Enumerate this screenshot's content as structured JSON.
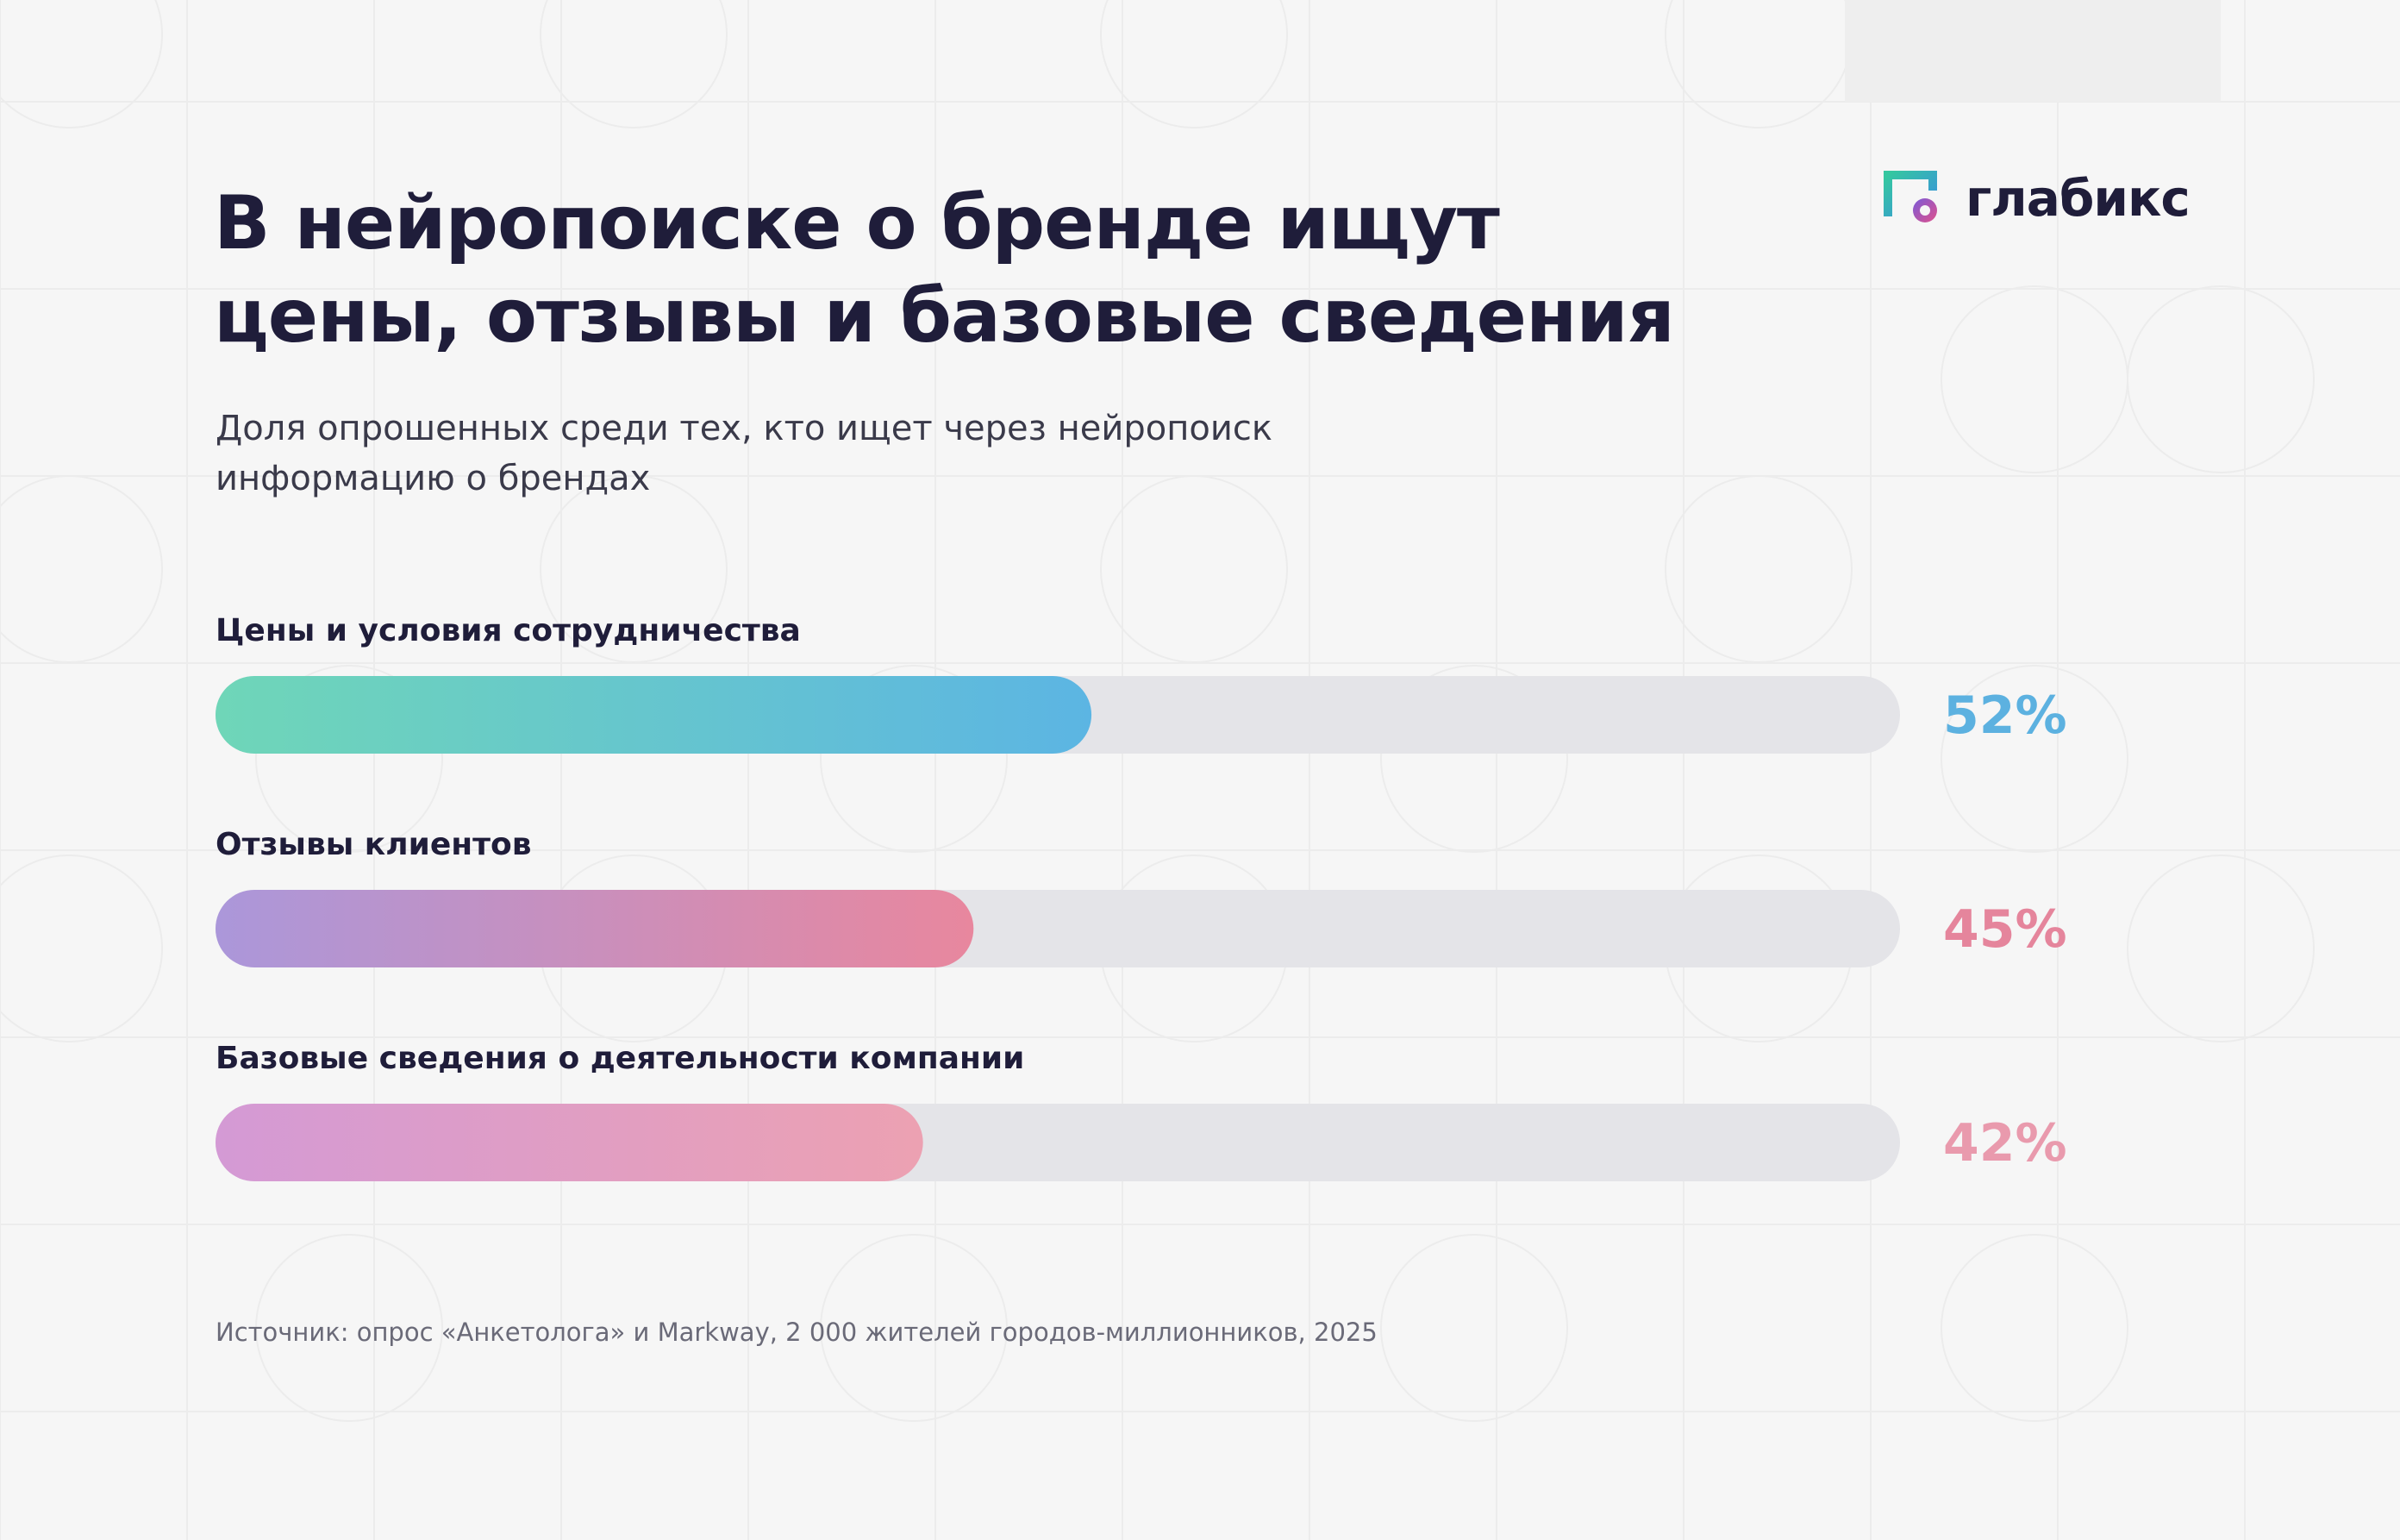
{
  "header": {
    "title_lines": [
      "В нейропоиске о бренде ищут",
      "цены, отзывы и базовые сведения"
    ],
    "subtitle_lines": [
      "Доля опрошенных среди тех, кто ищет через нейропоиск",
      "информацию о брендах"
    ]
  },
  "brand": {
    "name": "глабикс",
    "icon": "glabix-logo-icon"
  },
  "chart_data": {
    "type": "bar",
    "orientation": "horizontal",
    "xlim": [
      0,
      100
    ],
    "grid": false,
    "unit": "%",
    "categories": [
      "Цены и условия сотрудничества",
      "Отзывы клиентов",
      "Базовые сведения о деятельности компании"
    ],
    "values": [
      52,
      45,
      42
    ],
    "value_labels": [
      "52%",
      "45%",
      "42%"
    ],
    "colors": [
      {
        "from": "#6fd6b8",
        "to": "#5cb5e3",
        "label": "#5cb1e0"
      },
      {
        "from": "#ab97da",
        "to": "#e8879e",
        "label": "#e5859c"
      },
      {
        "from": "#d49ad5",
        "to": "#eca1b2",
        "label": "#e99aad"
      }
    ],
    "track_color": "#e4e4e8"
  },
  "footer": {
    "source": "Источник: опрос «Анкетолога» и Markway, 2 000 жителей городов-миллионников, 2025"
  }
}
